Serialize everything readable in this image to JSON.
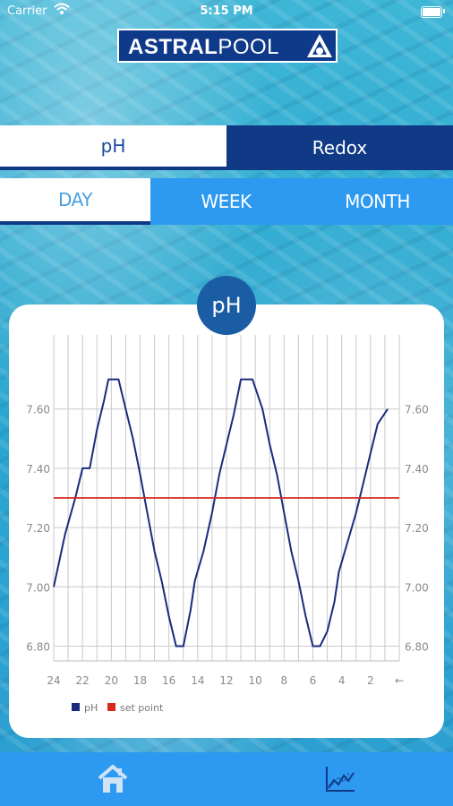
{
  "status_bar": {
    "carrier": "Carrier",
    "time": "5:15 PM"
  },
  "logo": {
    "bold": "ASTRAL",
    "light": "POOL"
  },
  "param_tabs": [
    {
      "label": "pH",
      "selected": true
    },
    {
      "label": "Redox",
      "selected": false
    }
  ],
  "period_tabs": [
    {
      "label": "DAY",
      "selected": true
    },
    {
      "label": "WEEK",
      "selected": false
    },
    {
      "label": "MONTH",
      "selected": false
    }
  ],
  "chart_badge": "pH",
  "colors": {
    "dark_blue": "#103a86",
    "light_blue": "#2d99f0",
    "series_ph": "#1c2a7c",
    "series_setpoint": "#d62a1e"
  },
  "icons": {
    "home": "home-icon",
    "graph": "line-chart-icon"
  },
  "chart_data": {
    "type": "line",
    "xlabel": "",
    "ylabel": "",
    "x_ticks": [
      "24",
      "22",
      "20",
      "18",
      "16",
      "14",
      "12",
      "10",
      "8",
      "6",
      "4",
      "2",
      "←"
    ],
    "x_range": [
      24,
      0
    ],
    "ylim": [
      6.75,
      7.85
    ],
    "y_ticks": [
      "7.60",
      "7.40",
      "7.20",
      "7.00",
      "6.80"
    ],
    "y_tick_values": [
      7.6,
      7.4,
      7.2,
      7.0,
      6.8
    ],
    "grid": true,
    "legend_position": "bottom-left",
    "series": [
      {
        "name": "pH",
        "x": [
          24,
          23.2,
          22.5,
          22,
          21.5,
          21,
          20.5,
          20.2,
          19.5,
          19,
          18.5,
          18,
          17.5,
          17,
          16.5,
          16,
          15.5,
          15,
          14.5,
          14.2,
          13.6,
          13,
          12.5,
          12,
          11.5,
          11,
          10.5,
          10.2,
          9.5,
          9,
          8.5,
          8,
          7.5,
          7,
          6.5,
          6,
          5.5,
          5,
          4.5,
          4.2,
          3.6,
          3,
          2.5,
          2,
          1.5,
          0.8
        ],
        "values": [
          7.0,
          7.18,
          7.3,
          7.4,
          7.4,
          7.53,
          7.63,
          7.7,
          7.7,
          7.6,
          7.5,
          7.38,
          7.25,
          7.12,
          7.02,
          6.9,
          6.8,
          6.8,
          6.92,
          7.02,
          7.12,
          7.25,
          7.38,
          7.48,
          7.58,
          7.7,
          7.7,
          7.7,
          7.6,
          7.48,
          7.38,
          7.25,
          7.12,
          7.02,
          6.9,
          6.8,
          6.8,
          6.85,
          6.95,
          7.05,
          7.15,
          7.25,
          7.35,
          7.45,
          7.55,
          7.6
        ]
      },
      {
        "name": "set point",
        "x": [
          24,
          0
        ],
        "values": [
          7.3,
          7.3
        ]
      }
    ]
  }
}
